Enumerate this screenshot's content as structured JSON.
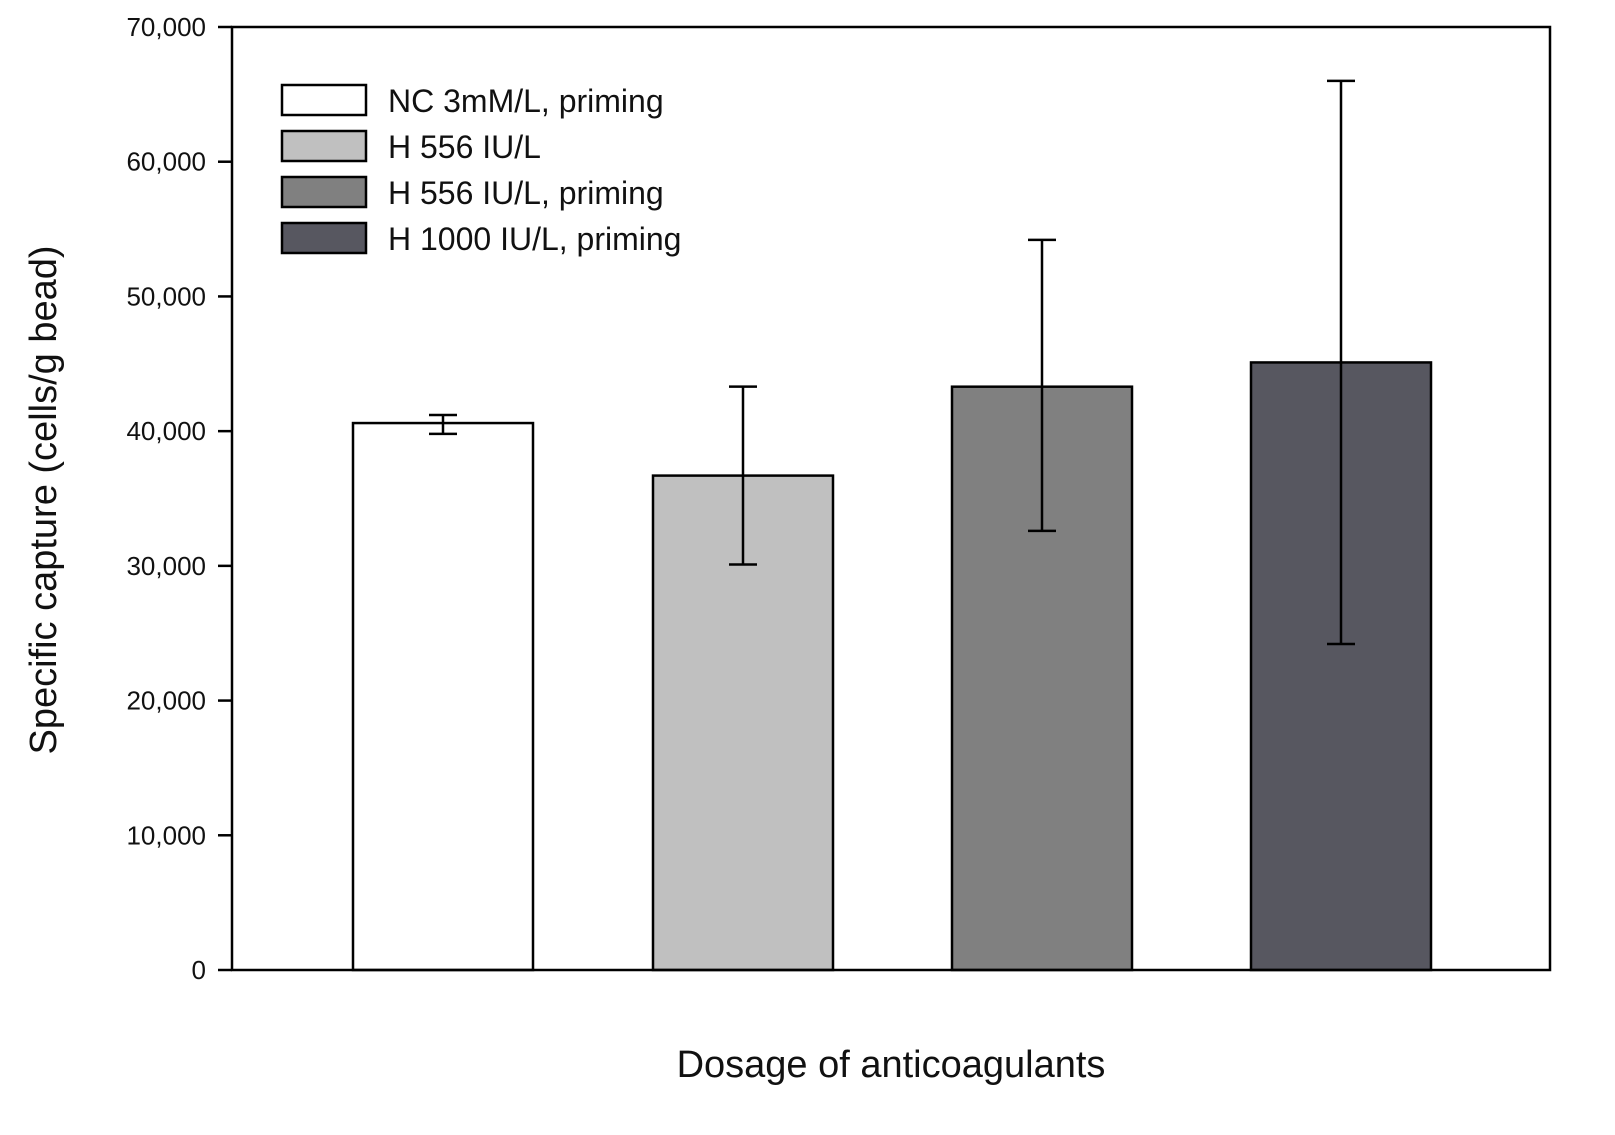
{
  "chart_data": {
    "type": "bar",
    "title": "",
    "xlabel": "Dosage of anticoagulants",
    "ylabel": "Specific capture (cells/g bead)",
    "ylim": [
      0,
      70000
    ],
    "yticks": [
      0,
      10000,
      20000,
      30000,
      40000,
      50000,
      60000,
      70000
    ],
    "ytick_labels": [
      "0",
      "10,000",
      "20,000",
      "30,000",
      "40,000",
      "50,000",
      "60,000",
      "70,000"
    ],
    "grid": false,
    "legend_position": "top-left",
    "series": [
      {
        "name": "NC 3mM/L, priming",
        "value": 40600,
        "error_low": 39800,
        "error_high": 41200,
        "color": "#ffffff"
      },
      {
        "name": "H 556 IU/L",
        "value": 36700,
        "error_low": 30100,
        "error_high": 43300,
        "color": "#c0c0c0"
      },
      {
        "name": "H 556 IU/L, priming",
        "value": 43300,
        "error_low": 32600,
        "error_high": 54200,
        "color": "#808080"
      },
      {
        "name": "H 1000 IU/L, priming",
        "value": 45100,
        "error_low": 24200,
        "error_high": 66000,
        "color": "#575760"
      }
    ]
  }
}
